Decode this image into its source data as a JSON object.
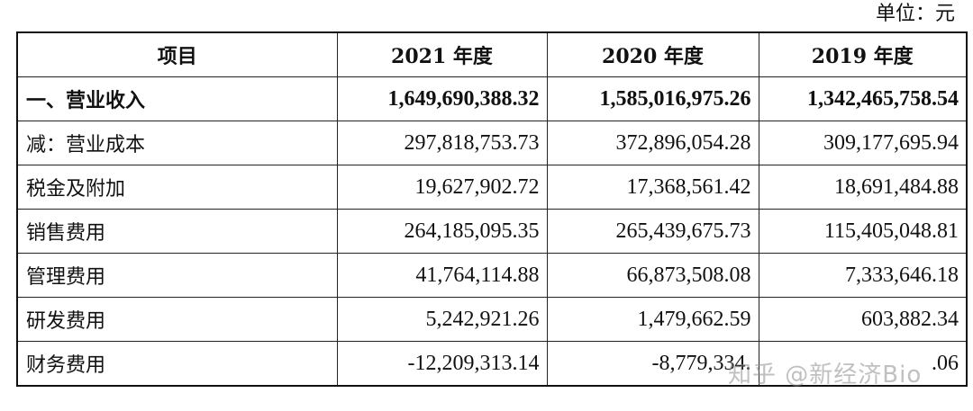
{
  "unit_note": "单位：元",
  "headers": [
    "项目",
    "2021 年度",
    "2020 年度",
    "2019 年度"
  ],
  "rows": [
    {
      "label": "一、营业收入",
      "v2021": "1,649,690,388.32",
      "v2020": "1,585,016,975.26",
      "v2019": "1,342,465,758.54"
    },
    {
      "label": "减：营业成本",
      "v2021": "297,818,753.73",
      "v2020": "372,896,054.28",
      "v2019": "309,177,695.94"
    },
    {
      "label": "税金及附加",
      "v2021": "19,627,902.72",
      "v2020": "17,368,561.42",
      "v2019": "18,691,484.88"
    },
    {
      "label": "销售费用",
      "v2021": "264,185,095.35",
      "v2020": "265,439,675.73",
      "v2019": "115,405,048.81"
    },
    {
      "label": "管理费用",
      "v2021": "41,764,114.88",
      "v2020": "66,873,508.08",
      "v2019": "7,333,646.18"
    },
    {
      "label": "研发费用",
      "v2021": "5,242,921.26",
      "v2020": "1,479,662.59",
      "v2019": "603,882.34"
    },
    {
      "label": "财务费用",
      "v2021": "-12,209,313.14",
      "v2020": "-8,779,334.",
      "v2019": ".06"
    }
  ],
  "watermark": "知乎 @新经济Bio"
}
